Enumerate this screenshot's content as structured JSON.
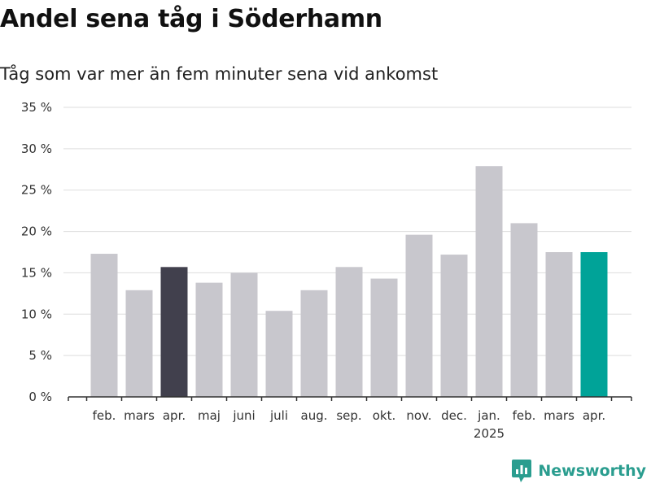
{
  "title": "Andel sena tåg i Söderhamn",
  "subtitle": "Tåg som var mer än fem minuter sena vid ankomst",
  "logo": {
    "text": "Newsworthy",
    "icon": "newsworthy-logo-icon",
    "color": "#2a9d8f"
  },
  "colors": {
    "default": "#c8c7cd",
    "highlight_dark": "#41404d",
    "highlight_teal": "#00a398",
    "grid": "#dddddd",
    "axis": "#333333"
  },
  "chart_data": {
    "type": "bar",
    "title": "Andel sena tåg i Söderhamn",
    "subtitle": "Tåg som var mer än fem minuter sena vid ankomst",
    "xlabel": "",
    "ylabel": "",
    "ylim": [
      0,
      35
    ],
    "yticks": [
      0,
      5,
      10,
      15,
      20,
      25,
      30,
      35
    ],
    "ytick_labels": [
      "0 %",
      "5 %",
      "10 %",
      "15 %",
      "20 %",
      "25 %",
      "30 %",
      "35 %"
    ],
    "grid": true,
    "year_label": {
      "text": "2025",
      "under": "jan."
    },
    "categories": [
      "feb.",
      "mars",
      "apr.",
      "maj",
      "juni",
      "juli",
      "aug.",
      "sep.",
      "okt.",
      "nov.",
      "dec.",
      "jan.",
      "feb.",
      "mars",
      "apr."
    ],
    "values": [
      17.3,
      12.9,
      15.7,
      13.8,
      15.0,
      10.4,
      12.9,
      15.7,
      14.3,
      19.6,
      17.2,
      27.9,
      21.0,
      17.5,
      17.5
    ],
    "bar_colors": [
      "default",
      "default",
      "highlight_dark",
      "default",
      "default",
      "default",
      "default",
      "default",
      "default",
      "default",
      "default",
      "default",
      "default",
      "default",
      "highlight_teal"
    ]
  }
}
